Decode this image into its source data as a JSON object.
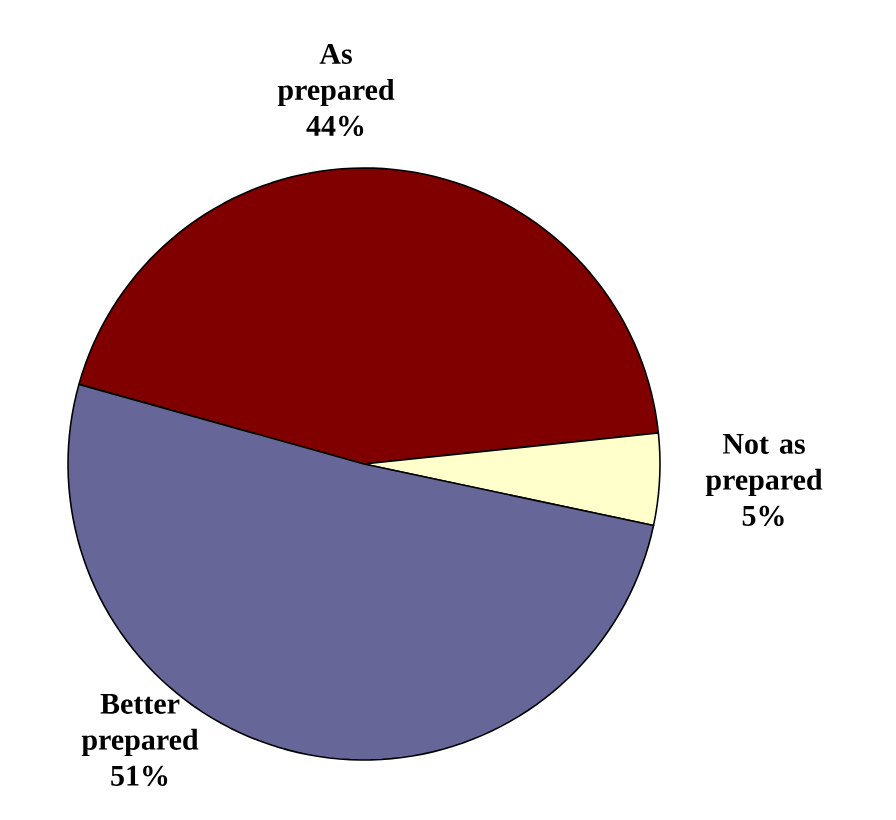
{
  "chart_data": {
    "type": "pie",
    "categories": [
      "As prepared",
      "Not as prepared",
      "Better prepared"
    ],
    "values": [
      44,
      5,
      51
    ],
    "value_labels": [
      "44%",
      "5%",
      "51%"
    ],
    "colors": [
      "#800000",
      "#ffffcc",
      "#666699"
    ]
  }
}
